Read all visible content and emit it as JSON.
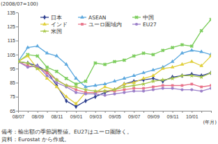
{
  "chart_data": {
    "type": "line",
    "y_label": "(2008/07=100)",
    "x_label": "(年月)",
    "categories": [
      "08/07",
      null,
      "08/09",
      null,
      "08/11",
      null,
      "09/01",
      null,
      "09/03",
      null,
      "09/05",
      null,
      "09/07",
      null,
      "09/09",
      null,
      "09/11",
      null,
      "10/01",
      null,
      null
    ],
    "ylim": [
      65,
      135
    ],
    "yticks": [
      65,
      75,
      85,
      95,
      105,
      115,
      125,
      135
    ],
    "grid": false,
    "legend": "top",
    "series": [
      {
        "name": "日本",
        "color": "#2e3f8f",
        "marker": "diamond",
        "values": [
          100,
          99,
          97,
          93,
          83,
          72,
          68,
          72,
          75,
          78,
          80,
          84,
          86,
          87,
          88,
          86,
          89,
          90,
          91,
          90,
          92
        ]
      },
      {
        "name": "ASEAN",
        "color": "#5aa7de",
        "marker": "triangle",
        "values": [
          100,
          110,
          111,
          106,
          104,
          98,
          88,
          82,
          83,
          84,
          86,
          88,
          90,
          92,
          94,
          96,
          100,
          106,
          108,
          107,
          105
        ]
      },
      {
        "name": "中国",
        "color": "#7acc5a",
        "marker": "x",
        "values": [
          100,
          105,
          104,
          96,
          93,
          88,
          84,
          86,
          99,
          98,
          100,
          101,
          104,
          106,
          105,
          108,
          110,
          112,
          111,
          122,
          130
        ]
      },
      {
        "name": "インド",
        "color": "#e0cf3a",
        "marker": "triangle",
        "values": [
          100,
          104,
          95,
          88,
          82,
          75,
          70,
          78,
          78,
          82,
          80,
          84,
          85,
          88,
          90,
          95,
          96,
          98,
          100,
          97,
          104
        ]
      },
      {
        "name": "ユーロ圏域内",
        "color": "#e8738a",
        "marker": "square",
        "values": [
          100,
          97,
          96,
          92,
          87,
          83,
          80,
          78,
          78,
          79,
          79,
          80,
          81,
          81,
          82,
          83,
          83,
          83,
          84,
          82,
          83
        ]
      },
      {
        "name": "EU27",
        "color": "#9b7fc9",
        "marker": "circle",
        "values": [
          100,
          96,
          97,
          90,
          85,
          82,
          78,
          77,
          77,
          76,
          77,
          78,
          79,
          79,
          80,
          81,
          81,
          80,
          80,
          79,
          81
        ]
      },
      {
        "name": "米国",
        "color": "#a8c84a",
        "marker": "star",
        "values": [
          100,
          99,
          95,
          94,
          87,
          83,
          82,
          80,
          79,
          79,
          80,
          82,
          83,
          84,
          86,
          87,
          88,
          90,
          90,
          89,
          92
        ]
      }
    ],
    "notes": [
      "備考：輸出額の季節調整値。EU27はユーロ圏除く。",
      "資料：Eurostat から作成。"
    ]
  }
}
